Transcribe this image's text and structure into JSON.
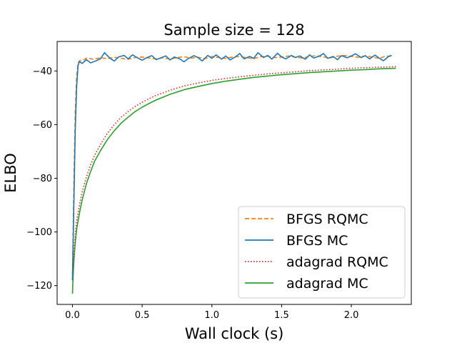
{
  "chart_data": {
    "type": "line",
    "title": "Sample size = 128",
    "xlabel": "Wall clock (s)",
    "ylabel": "ELBO",
    "xlim": [
      -0.11,
      2.43
    ],
    "ylim": [
      -127,
      -29
    ],
    "xticks": [
      0.0,
      0.5,
      1.0,
      1.5,
      2.0
    ],
    "xtick_labels": [
      "0.0",
      "0.5",
      "1.0",
      "1.5",
      "2.0"
    ],
    "yticks": [
      -120,
      -100,
      -80,
      -60,
      -40
    ],
    "ytick_labels": [
      "−120",
      "−100",
      "−80",
      "−60",
      "−40"
    ],
    "legend_position": "lower-right",
    "series": [
      {
        "name": "BFGS RQMC",
        "color": "#ff7f0e",
        "style": "dashed",
        "points": [
          [
            0.0,
            -116
          ],
          [
            0.01,
            -82
          ],
          [
            0.02,
            -55
          ],
          [
            0.03,
            -42
          ],
          [
            0.04,
            -37
          ],
          [
            0.05,
            -36.2
          ],
          [
            0.08,
            -35.9
          ],
          [
            0.1,
            -35.2
          ],
          [
            0.15,
            -35.6
          ],
          [
            0.2,
            -35.1
          ],
          [
            0.25,
            -35.4
          ],
          [
            0.3,
            -34.9
          ],
          [
            0.35,
            -35.3
          ],
          [
            0.4,
            -35.6
          ],
          [
            0.45,
            -35.0
          ],
          [
            0.5,
            -34.8
          ],
          [
            0.55,
            -35.2
          ],
          [
            0.6,
            -35.5
          ],
          [
            0.65,
            -35.1
          ],
          [
            0.7,
            -35.6
          ],
          [
            0.75,
            -35.0
          ],
          [
            0.8,
            -34.7
          ],
          [
            0.85,
            -35.2
          ],
          [
            0.9,
            -34.9
          ],
          [
            0.95,
            -35.4
          ],
          [
            1.0,
            -34.6
          ],
          [
            1.05,
            -35.0
          ],
          [
            1.1,
            -35.3
          ],
          [
            1.15,
            -34.8
          ],
          [
            1.2,
            -34.6
          ],
          [
            1.25,
            -35.1
          ],
          [
            1.3,
            -35.4
          ],
          [
            1.35,
            -34.7
          ],
          [
            1.4,
            -34.5
          ],
          [
            1.45,
            -35.0
          ],
          [
            1.5,
            -34.8
          ],
          [
            1.55,
            -34.4
          ],
          [
            1.6,
            -34.9
          ],
          [
            1.65,
            -35.2
          ],
          [
            1.7,
            -34.6
          ],
          [
            1.75,
            -34.3
          ],
          [
            1.8,
            -34.8
          ],
          [
            1.85,
            -35.1
          ],
          [
            1.9,
            -34.5
          ],
          [
            1.95,
            -34.2
          ],
          [
            2.0,
            -34.6
          ],
          [
            2.05,
            -34.9
          ],
          [
            2.1,
            -34.4
          ],
          [
            2.15,
            -34.8
          ],
          [
            2.2,
            -35.3
          ],
          [
            2.25,
            -34.4
          ],
          [
            2.28,
            -34.6
          ]
        ]
      },
      {
        "name": "BFGS MC",
        "color": "#1f77b4",
        "style": "solid",
        "points": [
          [
            0.0,
            -118
          ],
          [
            0.01,
            -90
          ],
          [
            0.02,
            -62
          ],
          [
            0.03,
            -46
          ],
          [
            0.04,
            -38
          ],
          [
            0.05,
            -36.5
          ],
          [
            0.07,
            -37.2
          ],
          [
            0.1,
            -35.8
          ],
          [
            0.13,
            -37.0
          ],
          [
            0.17,
            -36.2
          ],
          [
            0.2,
            -35.5
          ],
          [
            0.23,
            -33.2
          ],
          [
            0.27,
            -35.3
          ],
          [
            0.3,
            -36.3
          ],
          [
            0.33,
            -34.8
          ],
          [
            0.37,
            -34.2
          ],
          [
            0.4,
            -35.5
          ],
          [
            0.43,
            -34.0
          ],
          [
            0.47,
            -35.2
          ],
          [
            0.5,
            -36.0
          ],
          [
            0.53,
            -35.1
          ],
          [
            0.57,
            -34.3
          ],
          [
            0.6,
            -35.8
          ],
          [
            0.63,
            -35.2
          ],
          [
            0.67,
            -34.4
          ],
          [
            0.7,
            -35.9
          ],
          [
            0.73,
            -34.8
          ],
          [
            0.77,
            -35.5
          ],
          [
            0.8,
            -36.6
          ],
          [
            0.83,
            -35.4
          ],
          [
            0.87,
            -34.3
          ],
          [
            0.9,
            -35.0
          ],
          [
            0.93,
            -36.3
          ],
          [
            0.97,
            -34.2
          ],
          [
            1.0,
            -35.3
          ],
          [
            1.03,
            -34.0
          ],
          [
            1.07,
            -35.6
          ],
          [
            1.1,
            -34.4
          ],
          [
            1.13,
            -35.9
          ],
          [
            1.17,
            -34.7
          ],
          [
            1.2,
            -33.5
          ],
          [
            1.23,
            -35.5
          ],
          [
            1.27,
            -34.6
          ],
          [
            1.3,
            -35.3
          ],
          [
            1.33,
            -33.2
          ],
          [
            1.37,
            -35.0
          ],
          [
            1.4,
            -34.2
          ],
          [
            1.43,
            -35.6
          ],
          [
            1.47,
            -33.4
          ],
          [
            1.5,
            -34.8
          ],
          [
            1.53,
            -35.5
          ],
          [
            1.57,
            -34.2
          ],
          [
            1.6,
            -35.0
          ],
          [
            1.63,
            -34.4
          ],
          [
            1.67,
            -35.6
          ],
          [
            1.7,
            -34.0
          ],
          [
            1.73,
            -35.2
          ],
          [
            1.77,
            -34.5
          ],
          [
            1.8,
            -33.5
          ],
          [
            1.83,
            -35.3
          ],
          [
            1.87,
            -34.6
          ],
          [
            1.9,
            -35.8
          ],
          [
            1.93,
            -34.3
          ],
          [
            1.97,
            -35.1
          ],
          [
            2.0,
            -34.4
          ],
          [
            2.03,
            -33.6
          ],
          [
            2.07,
            -35.0
          ],
          [
            2.1,
            -34.3
          ],
          [
            2.13,
            -35.5
          ],
          [
            2.17,
            -34.1
          ],
          [
            2.2,
            -35.2
          ],
          [
            2.23,
            -36.2
          ],
          [
            2.27,
            -34.5
          ],
          [
            2.29,
            -34.2
          ]
        ]
      },
      {
        "name": "adagrad RQMC",
        "color": "#d62728",
        "style": "dotted",
        "points": [
          [
            0.0,
            -118
          ],
          [
            0.01,
            -108
          ],
          [
            0.02,
            -101
          ],
          [
            0.03,
            -96
          ],
          [
            0.05,
            -90
          ],
          [
            0.07,
            -85
          ],
          [
            0.1,
            -79.5
          ],
          [
            0.13,
            -75
          ],
          [
            0.16,
            -71.3
          ],
          [
            0.2,
            -67.5
          ],
          [
            0.25,
            -63.3
          ],
          [
            0.3,
            -60
          ],
          [
            0.35,
            -57.2
          ],
          [
            0.4,
            -55.1
          ],
          [
            0.45,
            -53.2
          ],
          [
            0.5,
            -51.7
          ],
          [
            0.55,
            -50.3
          ],
          [
            0.6,
            -49.1
          ],
          [
            0.7,
            -47.2
          ],
          [
            0.8,
            -45.6
          ],
          [
            0.9,
            -44.5
          ],
          [
            1.0,
            -43.5
          ],
          [
            1.1,
            -42.8
          ],
          [
            1.2,
            -42.2
          ],
          [
            1.3,
            -41.6
          ],
          [
            1.4,
            -41.1
          ],
          [
            1.5,
            -40.7
          ],
          [
            1.6,
            -40.3
          ],
          [
            1.7,
            -39.9
          ],
          [
            1.8,
            -39.6
          ],
          [
            1.9,
            -39.3
          ],
          [
            2.0,
            -39.0
          ],
          [
            2.1,
            -38.8
          ],
          [
            2.2,
            -38.6
          ],
          [
            2.32,
            -38.4
          ]
        ]
      },
      {
        "name": "adagrad MC",
        "color": "#2ca02c",
        "style": "solid",
        "points": [
          [
            0.0,
            -123
          ],
          [
            0.005,
            -116
          ],
          [
            0.01,
            -111
          ],
          [
            0.02,
            -104
          ],
          [
            0.03,
            -99
          ],
          [
            0.05,
            -93
          ],
          [
            0.07,
            -88
          ],
          [
            0.1,
            -82
          ],
          [
            0.13,
            -77.5
          ],
          [
            0.16,
            -73.5
          ],
          [
            0.2,
            -69.8
          ],
          [
            0.25,
            -65.6
          ],
          [
            0.3,
            -62.3
          ],
          [
            0.35,
            -59.4
          ],
          [
            0.4,
            -57.2
          ],
          [
            0.45,
            -55.1
          ],
          [
            0.5,
            -53.5
          ],
          [
            0.55,
            -52.1
          ],
          [
            0.6,
            -50.8
          ],
          [
            0.7,
            -48.7
          ],
          [
            0.8,
            -47.0
          ],
          [
            0.9,
            -45.8
          ],
          [
            1.0,
            -44.7
          ],
          [
            1.1,
            -43.8
          ],
          [
            1.2,
            -43.1
          ],
          [
            1.3,
            -42.4
          ],
          [
            1.4,
            -41.9
          ],
          [
            1.5,
            -41.4
          ],
          [
            1.6,
            -41.0
          ],
          [
            1.7,
            -40.6
          ],
          [
            1.8,
            -40.3
          ],
          [
            1.9,
            -40.0
          ],
          [
            2.0,
            -39.7
          ],
          [
            2.1,
            -39.5
          ],
          [
            2.2,
            -39.2
          ],
          [
            2.32,
            -39.0
          ]
        ]
      }
    ]
  }
}
